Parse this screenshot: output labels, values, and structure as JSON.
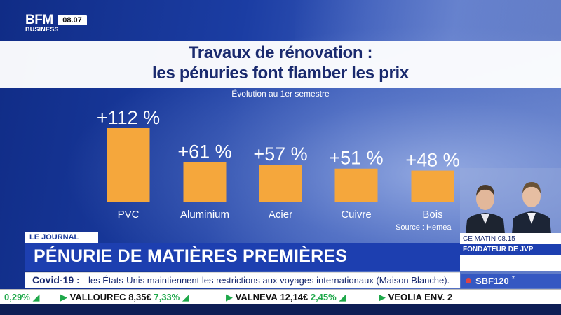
{
  "channel": {
    "logo_line1": "BFM",
    "logo_line2": "BUSINESS",
    "clock": "08.07"
  },
  "chart_data": {
    "type": "bar",
    "title": "Travaux de rénovation :",
    "title_line2": "les pénuries font flamber les prix",
    "subtitle": "Évolution au 1er semestre",
    "categories": [
      "PVC",
      "Aluminium",
      "Acier",
      "Cuivre",
      "Bois"
    ],
    "values": [
      112,
      61,
      57,
      51,
      48
    ],
    "value_labels": [
      "+112 %",
      "+61 %",
      "+57 %",
      "+51 %",
      "+48 %"
    ],
    "unit": "%",
    "ylim": [
      0,
      112
    ],
    "bar_color": "#f5a73c",
    "source": "Source : Hemea",
    "grid": false
  },
  "lower_third": {
    "tag": "LE JOURNAL",
    "headline": "PÉNURIE DE MATIÈRES PREMIÈRES",
    "show_time": "CE MATIN 08.15",
    "guest_role": "FONDATEUR DE JVP"
  },
  "news": {
    "topic": "Covid-19 :",
    "text": "les États-Unis maintiennent les restrictions aux voyages internationaux (Maison Blanche)."
  },
  "index": {
    "name": "SBF120",
    "star": "*"
  },
  "ticker": [
    {
      "pct": "0,29%",
      "dir": "up"
    },
    {
      "name": "VALLOUREC",
      "price": "8,35€",
      "pct": "7,33%",
      "dir": "up"
    },
    {
      "name": "VALNEVA",
      "price": "12,14€",
      "pct": "2,45%",
      "dir": "up"
    },
    {
      "name": "VEOLIA ENV.",
      "price": "2",
      "pct": "",
      "dir": ""
    }
  ],
  "colors": {
    "navy": "#1a2a6e",
    "accent_blue": "#1d3fb0",
    "bar": "#f5a73c",
    "up": "#1ea84a",
    "down": "#d93b3b"
  }
}
